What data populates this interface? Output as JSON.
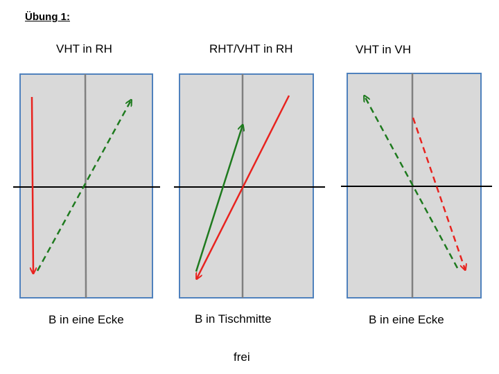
{
  "heading": "Übung 1:",
  "panels": [
    {
      "title": "VHT in RH",
      "caption": "B in eine Ecke"
    },
    {
      "title": "RHT/VHT in RH",
      "caption": "B in Tischmitte"
    },
    {
      "title": "VHT in VH",
      "caption": "B in eine Ecke"
    }
  ],
  "footer": "frei",
  "colors": {
    "table_fill": "#d9d9d9",
    "table_border": "#4f81bd",
    "center_line": "#808080",
    "red_arrow": "#e8231f",
    "green_arrow": "#1e7a1e"
  }
}
